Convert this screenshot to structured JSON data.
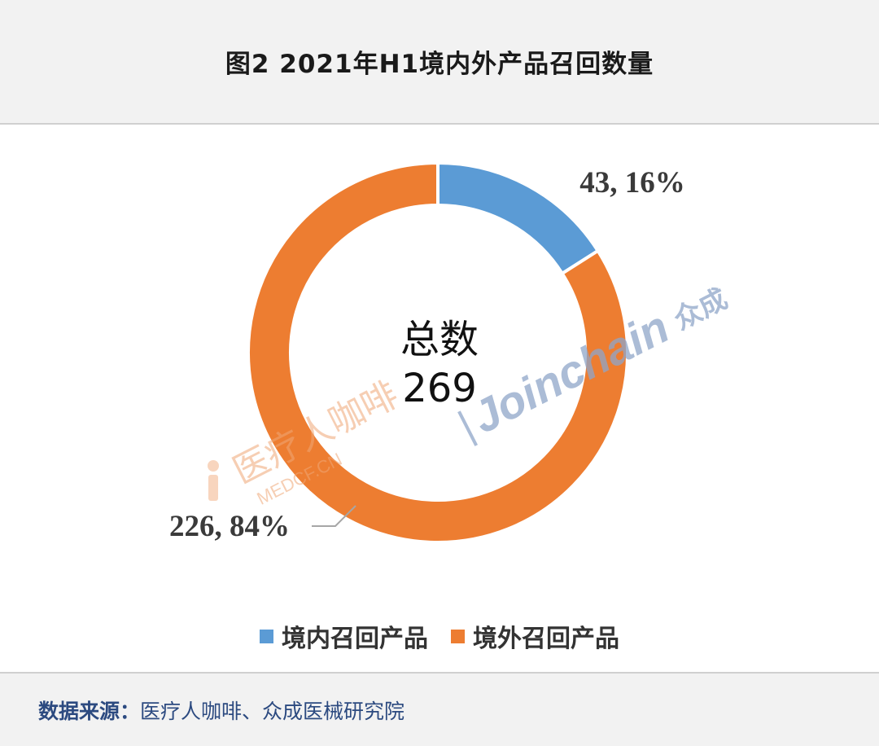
{
  "header": {
    "title": "图2  2021年H1境内外产品召回数量"
  },
  "center": {
    "label": "总数",
    "total": "269"
  },
  "chart_data": {
    "type": "pie",
    "variant": "donut",
    "title": "图2  2021年H1境内外产品召回数量",
    "total": 269,
    "series": [
      {
        "name": "境内召回产品",
        "value": 43,
        "percent": 16,
        "color": "#5b9bd5",
        "label": "43, 16%"
      },
      {
        "name": "境外召回产品",
        "value": 226,
        "percent": 84,
        "color": "#ed7d31",
        "label": "226, 84%"
      }
    ],
    "legend_position": "bottom"
  },
  "legend": {
    "items": [
      {
        "label": "境内召回产品",
        "color": "#5b9bd5"
      },
      {
        "label": "境外召回产品",
        "color": "#ed7d31"
      }
    ]
  },
  "watermarks": {
    "left_cn": "医疗人咖啡",
    "left_en": "MEDCF.CN",
    "right_brand": "Joinchain",
    "right_cn": "众成"
  },
  "footer": {
    "source_label": "数据来源：",
    "source_text": "医疗人咖啡、众成医械研究院"
  }
}
